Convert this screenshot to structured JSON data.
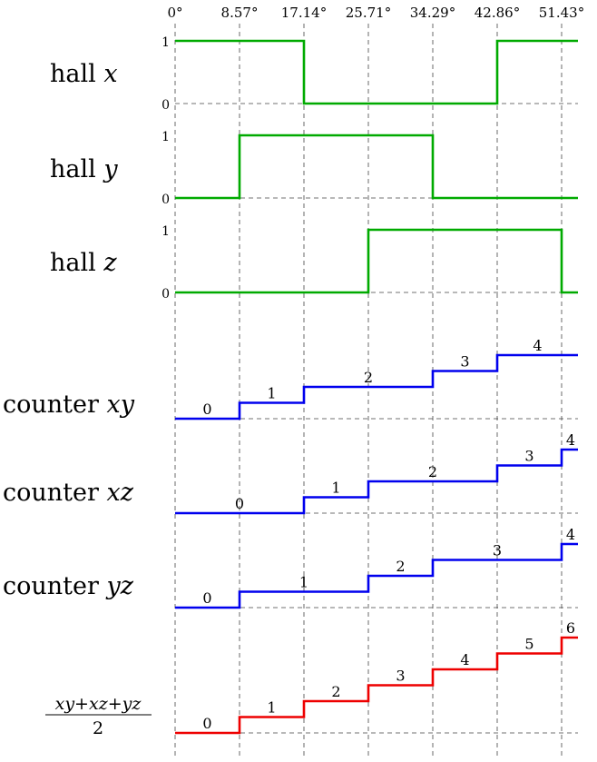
{
  "angle_ticks": [
    "0°",
    "8.57°",
    "17.14°",
    "25.71°",
    "34.29°",
    "42.86°",
    "51.43°"
  ],
  "hall": [
    {
      "label": "hall",
      "var": "x",
      "high_label": "1",
      "low_label": "0",
      "segments": [
        1,
        1,
        0,
        0,
        0,
        1,
        1
      ]
    },
    {
      "label": "hall",
      "var": "y",
      "high_label": "1",
      "low_label": "0",
      "segments": [
        0,
        1,
        1,
        1,
        0,
        0,
        0
      ]
    },
    {
      "label": "hall",
      "var": "z",
      "high_label": "1",
      "low_label": "0",
      "segments": [
        0,
        0,
        0,
        1,
        1,
        1,
        0
      ]
    }
  ],
  "counters": [
    {
      "label": "counter",
      "var": "xy",
      "values": [
        0,
        1,
        2,
        2,
        3,
        4,
        4
      ],
      "step_labels": [
        "0",
        "1",
        "2",
        "3",
        "4"
      ],
      "color": "#0000ee"
    },
    {
      "label": "counter",
      "var": "xz",
      "values": [
        0,
        0,
        1,
        2,
        2,
        3,
        4
      ],
      "step_labels": [
        "0",
        "1",
        "2",
        "3",
        "4"
      ],
      "color": "#0000ee"
    },
    {
      "label": "counter",
      "var": "yz",
      "values": [
        0,
        1,
        1,
        2,
        3,
        3,
        4
      ],
      "step_labels": [
        "0",
        "1",
        "2",
        "3",
        "4"
      ],
      "color": "#0000ee"
    }
  ],
  "sum": {
    "numerator": "xy+xz+yz",
    "denominator": "2",
    "values": [
      0,
      1,
      2,
      3,
      4,
      5,
      6
    ],
    "step_labels": [
      "0",
      "1",
      "2",
      "3",
      "4",
      "5",
      "6"
    ],
    "color": "#ee0000"
  },
  "hall_color": "#00aa00"
}
